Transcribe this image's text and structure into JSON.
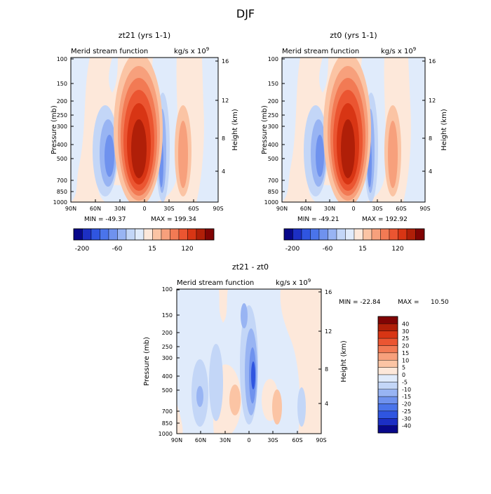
{
  "page_title": "DJF",
  "chart_data": [
    {
      "type": "contour",
      "panel_title": "zt21 (yrs 1-1)",
      "subtitle": "Merid stream function",
      "units": "kg/s x 10",
      "units_exp": "9",
      "ylabel": "Pressure (mb)",
      "ylabel_right": "Height (km)",
      "x_ticks": [
        "90N",
        "60N",
        "30N",
        "0",
        "30S",
        "60S",
        "90S"
      ],
      "y_ticks": [
        "100",
        "150",
        "200",
        "250",
        "300",
        "400",
        "500",
        "700",
        "850",
        "1000"
      ],
      "y_ticks_right": [
        "16",
        "12",
        "8",
        "4"
      ],
      "min_label": "MIN = -49.37",
      "max_label": "MAX = 199.34",
      "colorbar_labels": [
        "-200",
        "-60",
        "15",
        "120"
      ]
    },
    {
      "type": "contour",
      "panel_title": "zt0 (yrs 1-1)",
      "subtitle": "Merid stream function",
      "units": "kg/s x 10",
      "units_exp": "9",
      "ylabel": "Pressure (mb)",
      "ylabel_right": "Height (km)",
      "x_ticks": [
        "90N",
        "60N",
        "30N",
        "0",
        "30S",
        "60S",
        "90S"
      ],
      "y_ticks": [
        "100",
        "150",
        "200",
        "250",
        "300",
        "400",
        "500",
        "700",
        "850",
        "1000"
      ],
      "y_ticks_right": [
        "16",
        "12",
        "8",
        "4"
      ],
      "min_label": "MIN = -49.21",
      "max_label": "MAX = 192.92",
      "colorbar_labels": [
        "-200",
        "-60",
        "15",
        "120"
      ]
    },
    {
      "type": "contour",
      "panel_title": "zt21 - zt0",
      "subtitle": "Merid stream function",
      "units": "kg/s x 10",
      "units_exp": "9",
      "ylabel": "Pressure (mb)",
      "ylabel_right": "Height (km)",
      "x_ticks": [
        "90N",
        "60N",
        "30N",
        "0",
        "30S",
        "60S",
        "90S"
      ],
      "y_ticks": [
        "100",
        "150",
        "200",
        "250",
        "300",
        "400",
        "500",
        "700",
        "850",
        "1000"
      ],
      "y_ticks_right": [
        "16",
        "12",
        "8",
        "4"
      ],
      "min_label": "MIN = -22.84",
      "max_label": "MAX =",
      "max_value": "10.50",
      "colorbar_labels": [
        "40",
        "30",
        "25",
        "20",
        "15",
        "10",
        "5",
        "0",
        "-5",
        "-10",
        "-15",
        "-20",
        "-25",
        "-30",
        "-40"
      ]
    }
  ],
  "colors": {
    "neg": [
      "#08088a",
      "#1c2fc4",
      "#2f55e0",
      "#4a74ea",
      "#6f92ee",
      "#98b4f3",
      "#c3d6f7",
      "#e0ebfb"
    ],
    "pos": [
      "#fde8da",
      "#fbc4a4",
      "#f7a07c",
      "#f27a54",
      "#eb5531",
      "#d83514",
      "#b01f08",
      "#800404"
    ],
    "diff": [
      "#800404",
      "#b01f08",
      "#d83514",
      "#eb5531",
      "#f27a54",
      "#f7a07c",
      "#fbc4a4",
      "#fde8da",
      "#e0ebfb",
      "#c3d6f7",
      "#98b4f3",
      "#6f92ee",
      "#4a74ea",
      "#2f55e0",
      "#1c2fc4",
      "#08088a"
    ]
  }
}
